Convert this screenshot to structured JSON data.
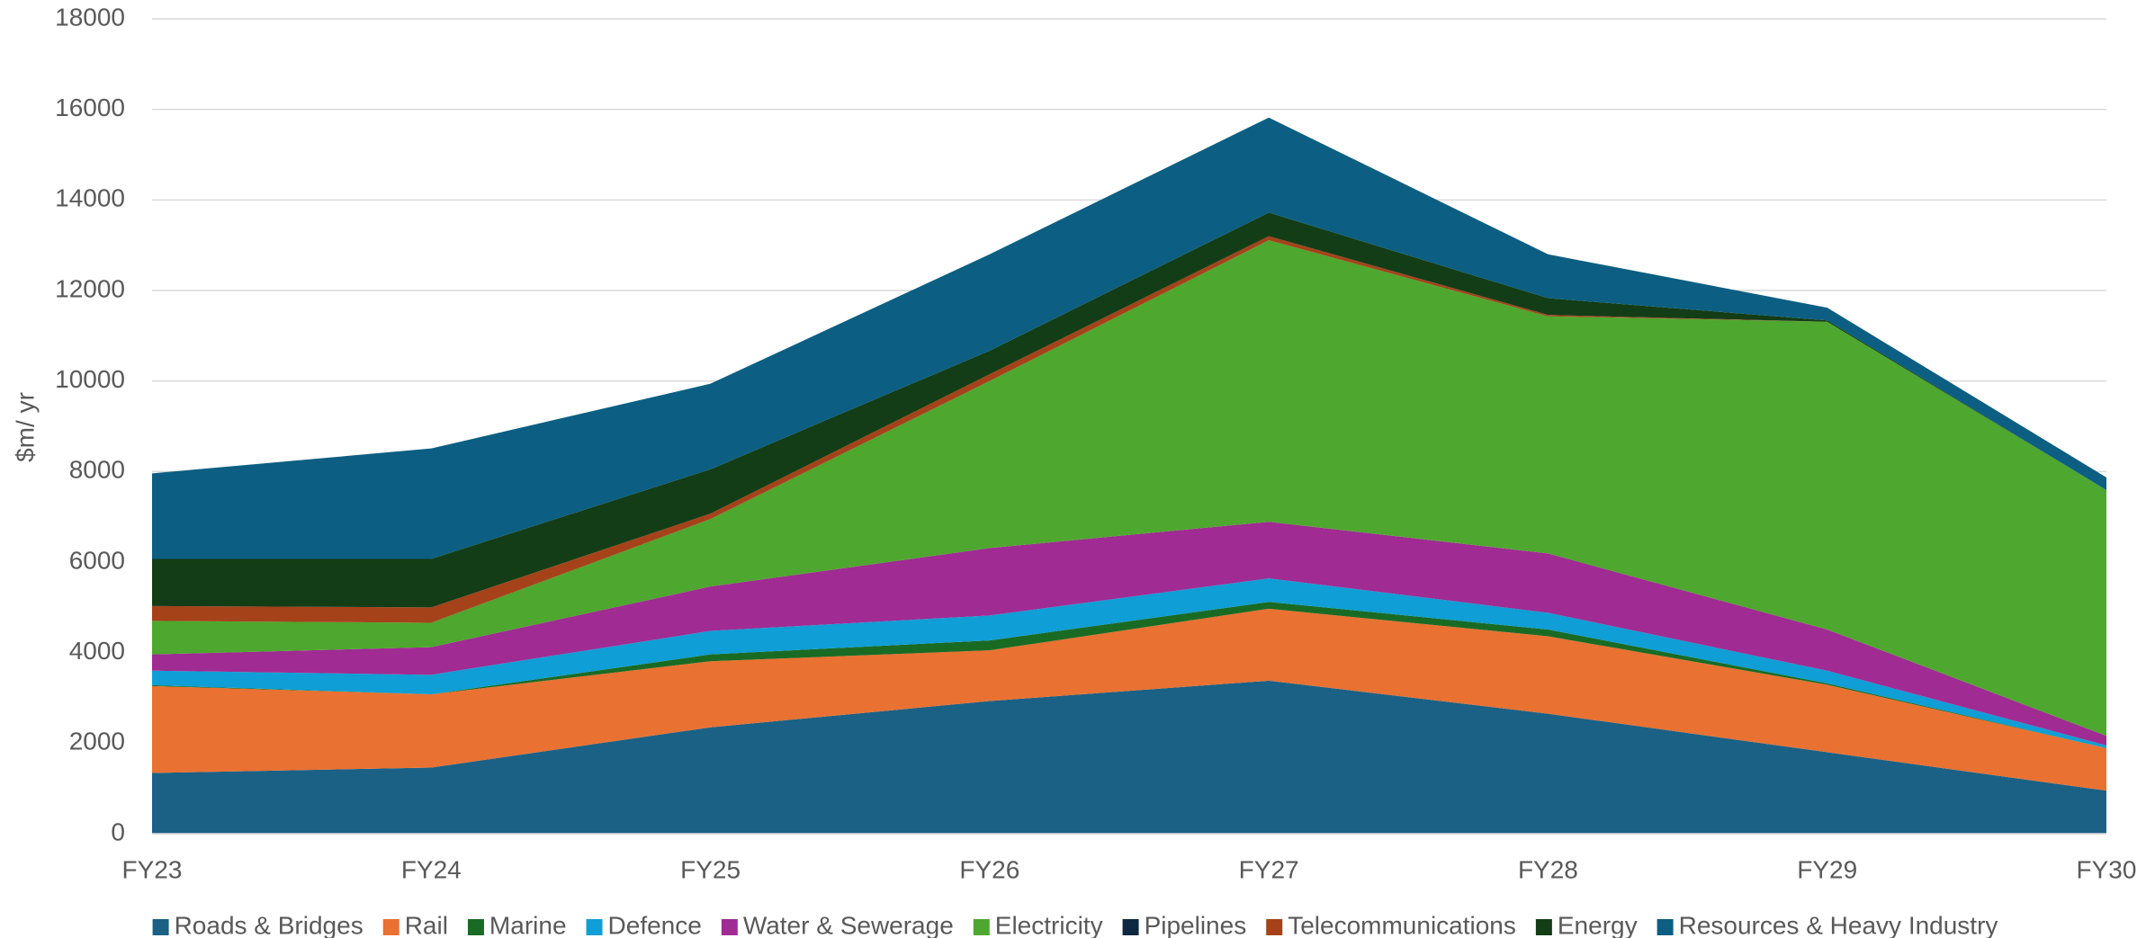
{
  "chart_data": {
    "type": "stacked_area",
    "y_label": "$m/ yr",
    "categories": [
      "FY23",
      "FY24",
      "FY25",
      "FY26",
      "FY27",
      "FY28",
      "FY29",
      "FY30"
    ],
    "ylim": [
      0,
      18000
    ],
    "yticks": [
      0,
      2000,
      4000,
      6000,
      8000,
      10000,
      12000,
      14000,
      16000,
      18000
    ],
    "grid": true,
    "legend": "bottom",
    "series": [
      {
        "name": "Roads & Bridges",
        "color": "#1b6185",
        "values": [
          1340,
          1460,
          2350,
          2930,
          3380,
          2650,
          1800,
          950
        ]
      },
      {
        "name": "Rail",
        "color": "#e97132",
        "values": [
          1920,
          1620,
          1460,
          1120,
          1590,
          1710,
          1490,
          940
        ]
      },
      {
        "name": "Marine",
        "color": "#196b24",
        "values": [
          20,
          0,
          150,
          220,
          150,
          150,
          30,
          0
        ]
      },
      {
        "name": "Defence",
        "color": "#0f9ed5",
        "values": [
          320,
          430,
          520,
          550,
          520,
          370,
          280,
          60
        ]
      },
      {
        "name": "Water & Sewerage",
        "color": "#a02b93",
        "values": [
          360,
          610,
          980,
          1490,
          1250,
          1310,
          910,
          210
        ]
      },
      {
        "name": "Electricity",
        "color": "#4ea72e",
        "values": [
          740,
          540,
          1490,
          3690,
          6220,
          5240,
          6800,
          5430
        ]
      },
      {
        "name": "Pipelines",
        "color": "#0e2841",
        "values": [
          0,
          0,
          0,
          0,
          0,
          0,
          0,
          0
        ]
      },
      {
        "name": "Telecommunications",
        "color": "#a5421a",
        "values": [
          330,
          340,
          120,
          150,
          90,
          30,
          0,
          0
        ]
      },
      {
        "name": "Energy",
        "color": "#133d16",
        "values": [
          1040,
          1070,
          980,
          520,
          520,
          370,
          30,
          0
        ]
      },
      {
        "name": "Resources & Heavy Industry",
        "color": "#0c5f82",
        "values": [
          1890,
          2440,
          1890,
          2130,
          2100,
          970,
          280,
          280
        ]
      }
    ]
  }
}
